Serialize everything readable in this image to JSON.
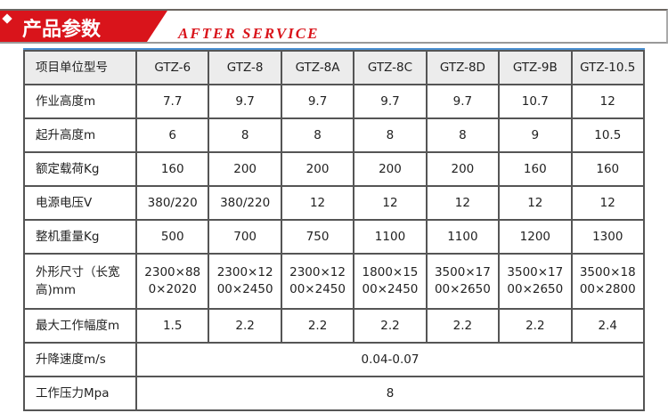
{
  "banner": {
    "title": "产品参数",
    "subtitle": "AFTER SERVICE",
    "accent": "#d9141b"
  },
  "table": {
    "header": [
      "项目单位型号",
      "GTZ-6",
      "GTZ-8",
      "GTZ-8A",
      "GTZ-8C",
      "GTZ-8D",
      "GTZ-9B",
      "GTZ-10.5"
    ],
    "rows": [
      {
        "label": "作业高度m",
        "values": [
          "7.7",
          "9.7",
          "9.7",
          "9.7",
          "9.7",
          "10.7",
          "12"
        ]
      },
      {
        "label": "起升高度m",
        "values": [
          "6",
          "8",
          "8",
          "8",
          "8",
          "9",
          "10.5"
        ]
      },
      {
        "label": "额定载荷Kg",
        "values": [
          "160",
          "200",
          "200",
          "200",
          "200",
          "160",
          "160"
        ]
      },
      {
        "label": "电源电压V",
        "values": [
          "380/220",
          "380/220",
          "12",
          "12",
          "12",
          "12",
          "12"
        ]
      },
      {
        "label": "整机重量Kg",
        "values": [
          "500",
          "700",
          "750",
          "1100",
          "1100",
          "1200",
          "1300"
        ]
      },
      {
        "label": "外形尺寸（长宽高)mm",
        "values": [
          "2300×880×2020",
          "2300×1200×2450",
          "2300×1200×2450",
          "1800×1500×2450",
          "3500×1700×2650",
          "3500×1700×2650",
          "3500×1800×2800"
        ]
      },
      {
        "label": "最大工作幅度m",
        "values": [
          "1.5",
          "2.2",
          "2.2",
          "2.2",
          "2.2",
          "2.2",
          "2.4"
        ]
      }
    ],
    "merged": [
      {
        "label": "升降速度m/s",
        "value": "0.04-0.07"
      },
      {
        "label": "工作压力Mpa",
        "value": "8"
      }
    ]
  }
}
